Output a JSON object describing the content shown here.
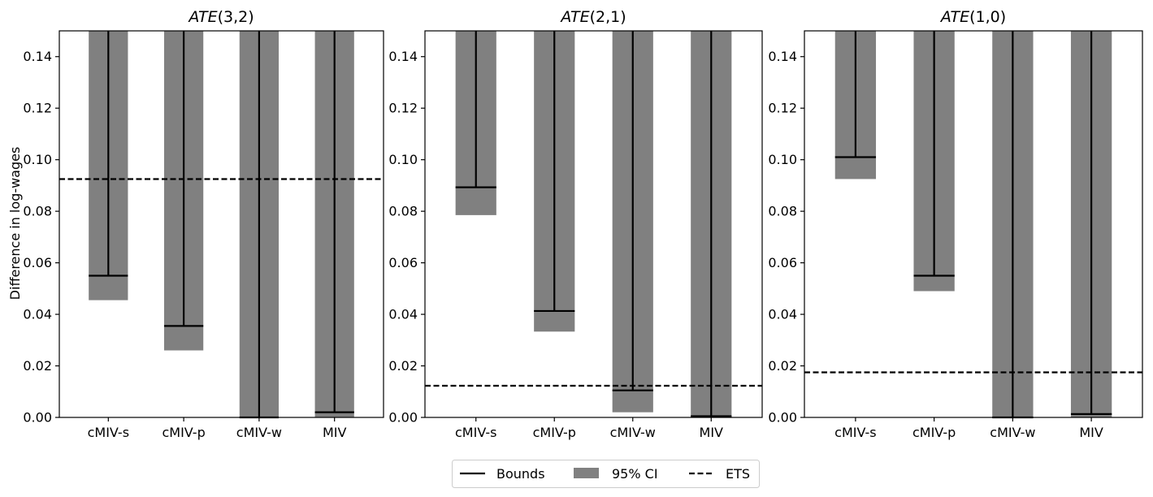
{
  "figure": {
    "ylabel": "Difference in log-wages",
    "legend": {
      "placement": "bottom-center",
      "entries": [
        {
          "label": "Bounds",
          "style": "solid-line"
        },
        {
          "label": "95% CI",
          "style": "gray-patch"
        },
        {
          "label": "ETS",
          "style": "dashed-line"
        }
      ]
    },
    "colors": {
      "ci": "#808080",
      "line": "#000000",
      "frame": "#000000"
    }
  },
  "chart_data": [
    {
      "type": "bar",
      "title_prefix": "ATE",
      "title_args": "(3,2)",
      "categories": [
        "cMIV-s",
        "cMIV-p",
        "cMIV-w",
        "MIV"
      ],
      "ylim": [
        0,
        0.15
      ],
      "yticks": [
        0.0,
        0.02,
        0.04,
        0.06,
        0.08,
        0.1,
        0.12,
        0.14
      ],
      "ytick_labels": [
        "0.00",
        "0.02",
        "0.04",
        "0.06",
        "0.08",
        "0.10",
        "0.12",
        "0.14"
      ],
      "ci_lower": [
        0.0455,
        0.026,
        0.0,
        0.0
      ],
      "bound_lower": [
        0.055,
        0.0355,
        0.0,
        0.002
      ],
      "upper": [
        0.15,
        0.15,
        0.15,
        0.15
      ],
      "ets": 0.0925
    },
    {
      "type": "bar",
      "title_prefix": "ATE",
      "title_args": "(2,1)",
      "categories": [
        "cMIV-s",
        "cMIV-p",
        "cMIV-w",
        "MIV"
      ],
      "ylim": [
        0,
        0.15
      ],
      "yticks": [
        0.0,
        0.02,
        0.04,
        0.06,
        0.08,
        0.1,
        0.12,
        0.14
      ],
      "ytick_labels": [
        "0.00",
        "0.02",
        "0.04",
        "0.06",
        "0.08",
        "0.10",
        "0.12",
        "0.14"
      ],
      "ci_lower": [
        0.0785,
        0.0333,
        0.002,
        0.0
      ],
      "bound_lower": [
        0.0893,
        0.0413,
        0.0105,
        0.0005
      ],
      "upper": [
        0.15,
        0.15,
        0.15,
        0.15
      ],
      "ets": 0.0123
    },
    {
      "type": "bar",
      "title_prefix": "ATE",
      "title_args": "(1,0)",
      "categories": [
        "cMIV-s",
        "cMIV-p",
        "cMIV-w",
        "MIV"
      ],
      "ylim": [
        0,
        0.15
      ],
      "yticks": [
        0.0,
        0.02,
        0.04,
        0.06,
        0.08,
        0.1,
        0.12,
        0.14
      ],
      "ytick_labels": [
        "0.00",
        "0.02",
        "0.04",
        "0.06",
        "0.08",
        "0.10",
        "0.12",
        "0.14"
      ],
      "ci_lower": [
        0.0925,
        0.049,
        0.0,
        0.0
      ],
      "bound_lower": [
        0.101,
        0.055,
        0.0,
        0.0013
      ],
      "upper": [
        0.15,
        0.15,
        0.15,
        0.15
      ],
      "ets": 0.0175
    }
  ]
}
